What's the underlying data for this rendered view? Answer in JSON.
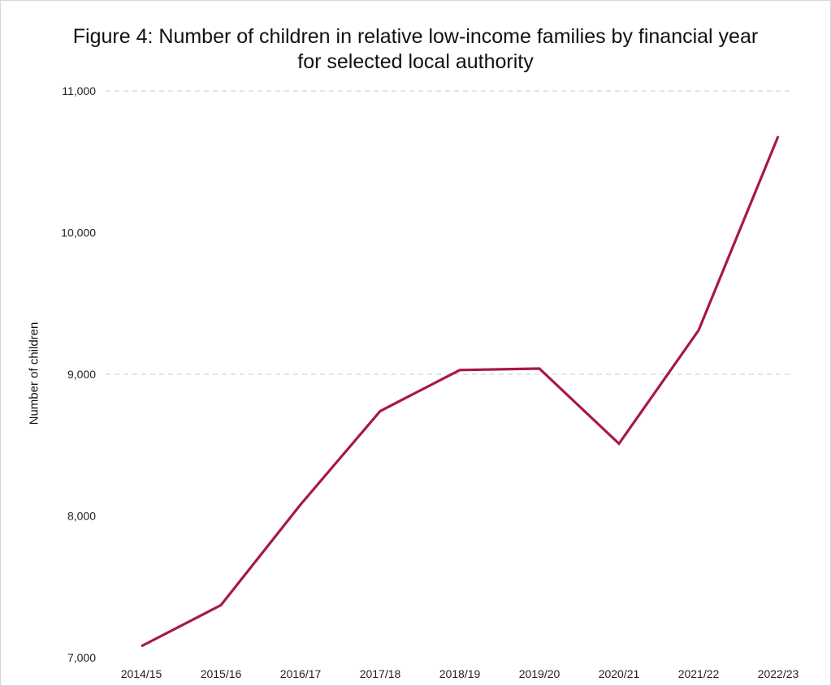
{
  "chart_data": {
    "type": "line",
    "title_lines": [
      "Figure 4: Number of children in relative low-income families by financial year",
      "for selected local authority"
    ],
    "xlabel": "",
    "ylabel": "Number of children",
    "categories": [
      "2014/15",
      "2015/16",
      "2016/17",
      "2017/18",
      "2018/19",
      "2019/20",
      "2020/21",
      "2021/22",
      "2022/23"
    ],
    "series": [
      {
        "values": [
          7080,
          7370,
          8080,
          8740,
          9030,
          9040,
          8510,
          9310,
          10680
        ],
        "color": "#a8174a"
      }
    ],
    "ylim": [
      7000,
      11000
    ],
    "yticks": [
      7000,
      8000,
      9000,
      10000,
      11000
    ],
    "ytick_labels": [
      "7,000",
      "8,000",
      "9,000",
      "10,000",
      "11,000"
    ],
    "grid": "horizontal dashed at 9,000 and 11,000",
    "legend": "none"
  }
}
